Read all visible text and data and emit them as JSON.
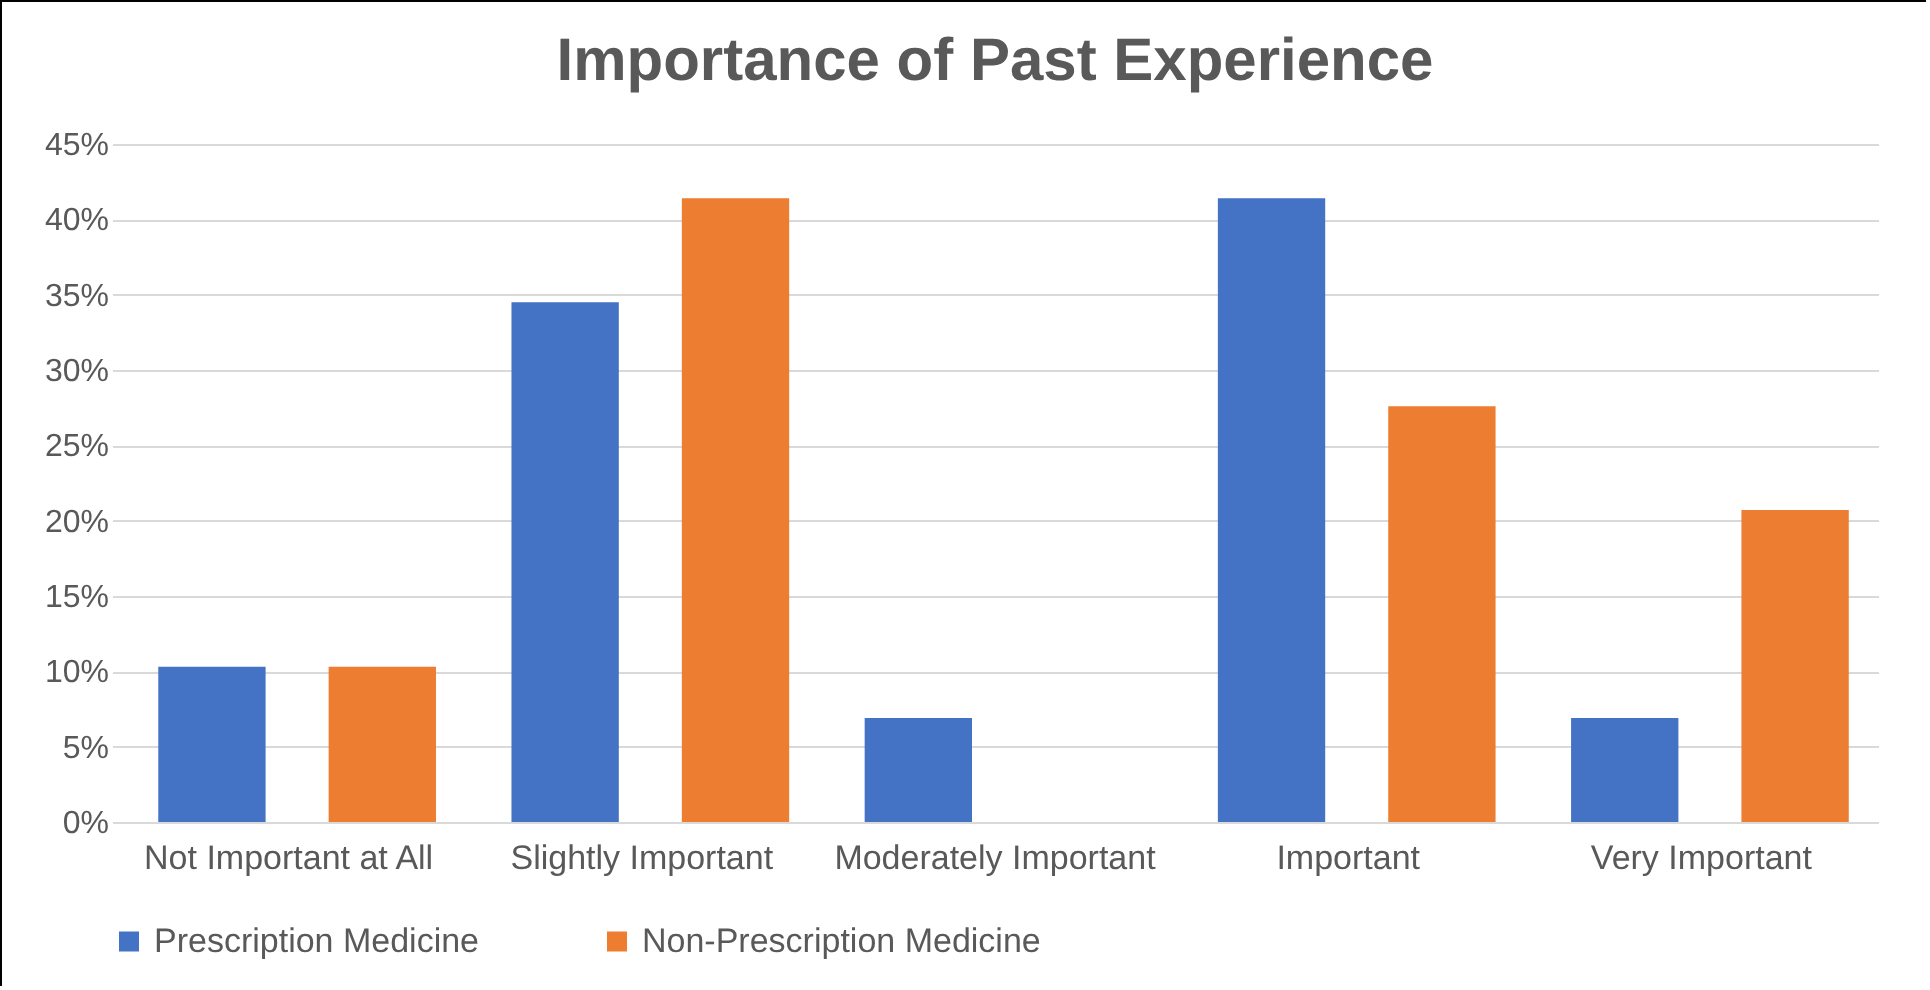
{
  "chart_data": {
    "type": "bar",
    "title": "Importance of Past Experience",
    "categories": [
      "Not Important at All",
      "Slightly Important",
      "Moderately Important",
      "Important",
      "Very Important"
    ],
    "series": [
      {
        "name": "Prescription Medicine",
        "color": "#4472c4",
        "values": [
          10.3,
          34.5,
          6.9,
          41.4,
          6.9
        ]
      },
      {
        "name": "Non-Prescription Medicine",
        "color": "#ed7d31",
        "values": [
          10.3,
          41.4,
          0,
          27.6,
          20.7
        ]
      }
    ],
    "ylim": [
      0,
      45
    ],
    "yticks": [
      {
        "value": 0,
        "label": "0%"
      },
      {
        "value": 5,
        "label": "5%"
      },
      {
        "value": 10,
        "label": "10%"
      },
      {
        "value": 15,
        "label": "15%"
      },
      {
        "value": 20,
        "label": "20%"
      },
      {
        "value": 25,
        "label": "25%"
      },
      {
        "value": 30,
        "label": "30%"
      },
      {
        "value": 35,
        "label": "35%"
      },
      {
        "value": 40,
        "label": "40%"
      },
      {
        "value": 45,
        "label": "45%"
      }
    ],
    "grid": "y",
    "legend": "bottom"
  }
}
